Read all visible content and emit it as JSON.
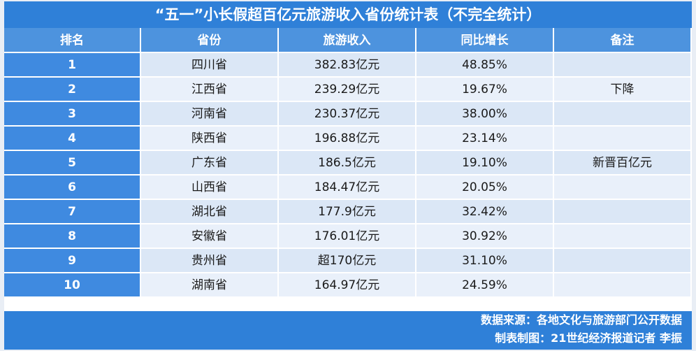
{
  "title": "“五一”小长假超百亿元旅游收入省份统计表（不完全统计）",
  "table": {
    "headers": [
      "排名",
      "省份",
      "旅游收入",
      "同比增长",
      "备注"
    ],
    "rows": [
      {
        "rank": "1",
        "province": "四川省",
        "income": "382.83亿元",
        "growth": "48.85%"
      },
      {
        "rank": "2",
        "province": "江西省",
        "income": "239.29亿元",
        "growth": "19.67%",
        "note": "下降"
      },
      {
        "rank": "3",
        "province": "河南省",
        "income": "230.37亿元",
        "growth": "38.00%"
      },
      {
        "rank": "4",
        "province": "陕西省",
        "income": "196.88亿元",
        "growth": "23.14%"
      },
      {
        "rank": "5",
        "province": "广东省",
        "income": "186.5亿元",
        "growth": "19.10%",
        "note": "新晋百亿元"
      },
      {
        "rank": "6",
        "province": "山西省",
        "income": "184.47亿元",
        "growth": "20.05%"
      },
      {
        "rank": "7",
        "province": "湖北省",
        "income": "177.9亿元",
        "growth": "32.42%"
      },
      {
        "rank": "8",
        "province": "安徽省",
        "income": "176.01亿元",
        "growth": "30.92%"
      },
      {
        "rank": "9",
        "province": "贵州省",
        "income": "超170亿元",
        "growth": "31.10%"
      },
      {
        "rank": "10",
        "province": "湖南省",
        "income": "164.97亿元",
        "growth": "24.59%"
      }
    ]
  },
  "footer": {
    "source": "数据来源：各地文化与旅游部门公开数据",
    "credit": "制表制图：21世纪经济报道记者 李振"
  }
}
